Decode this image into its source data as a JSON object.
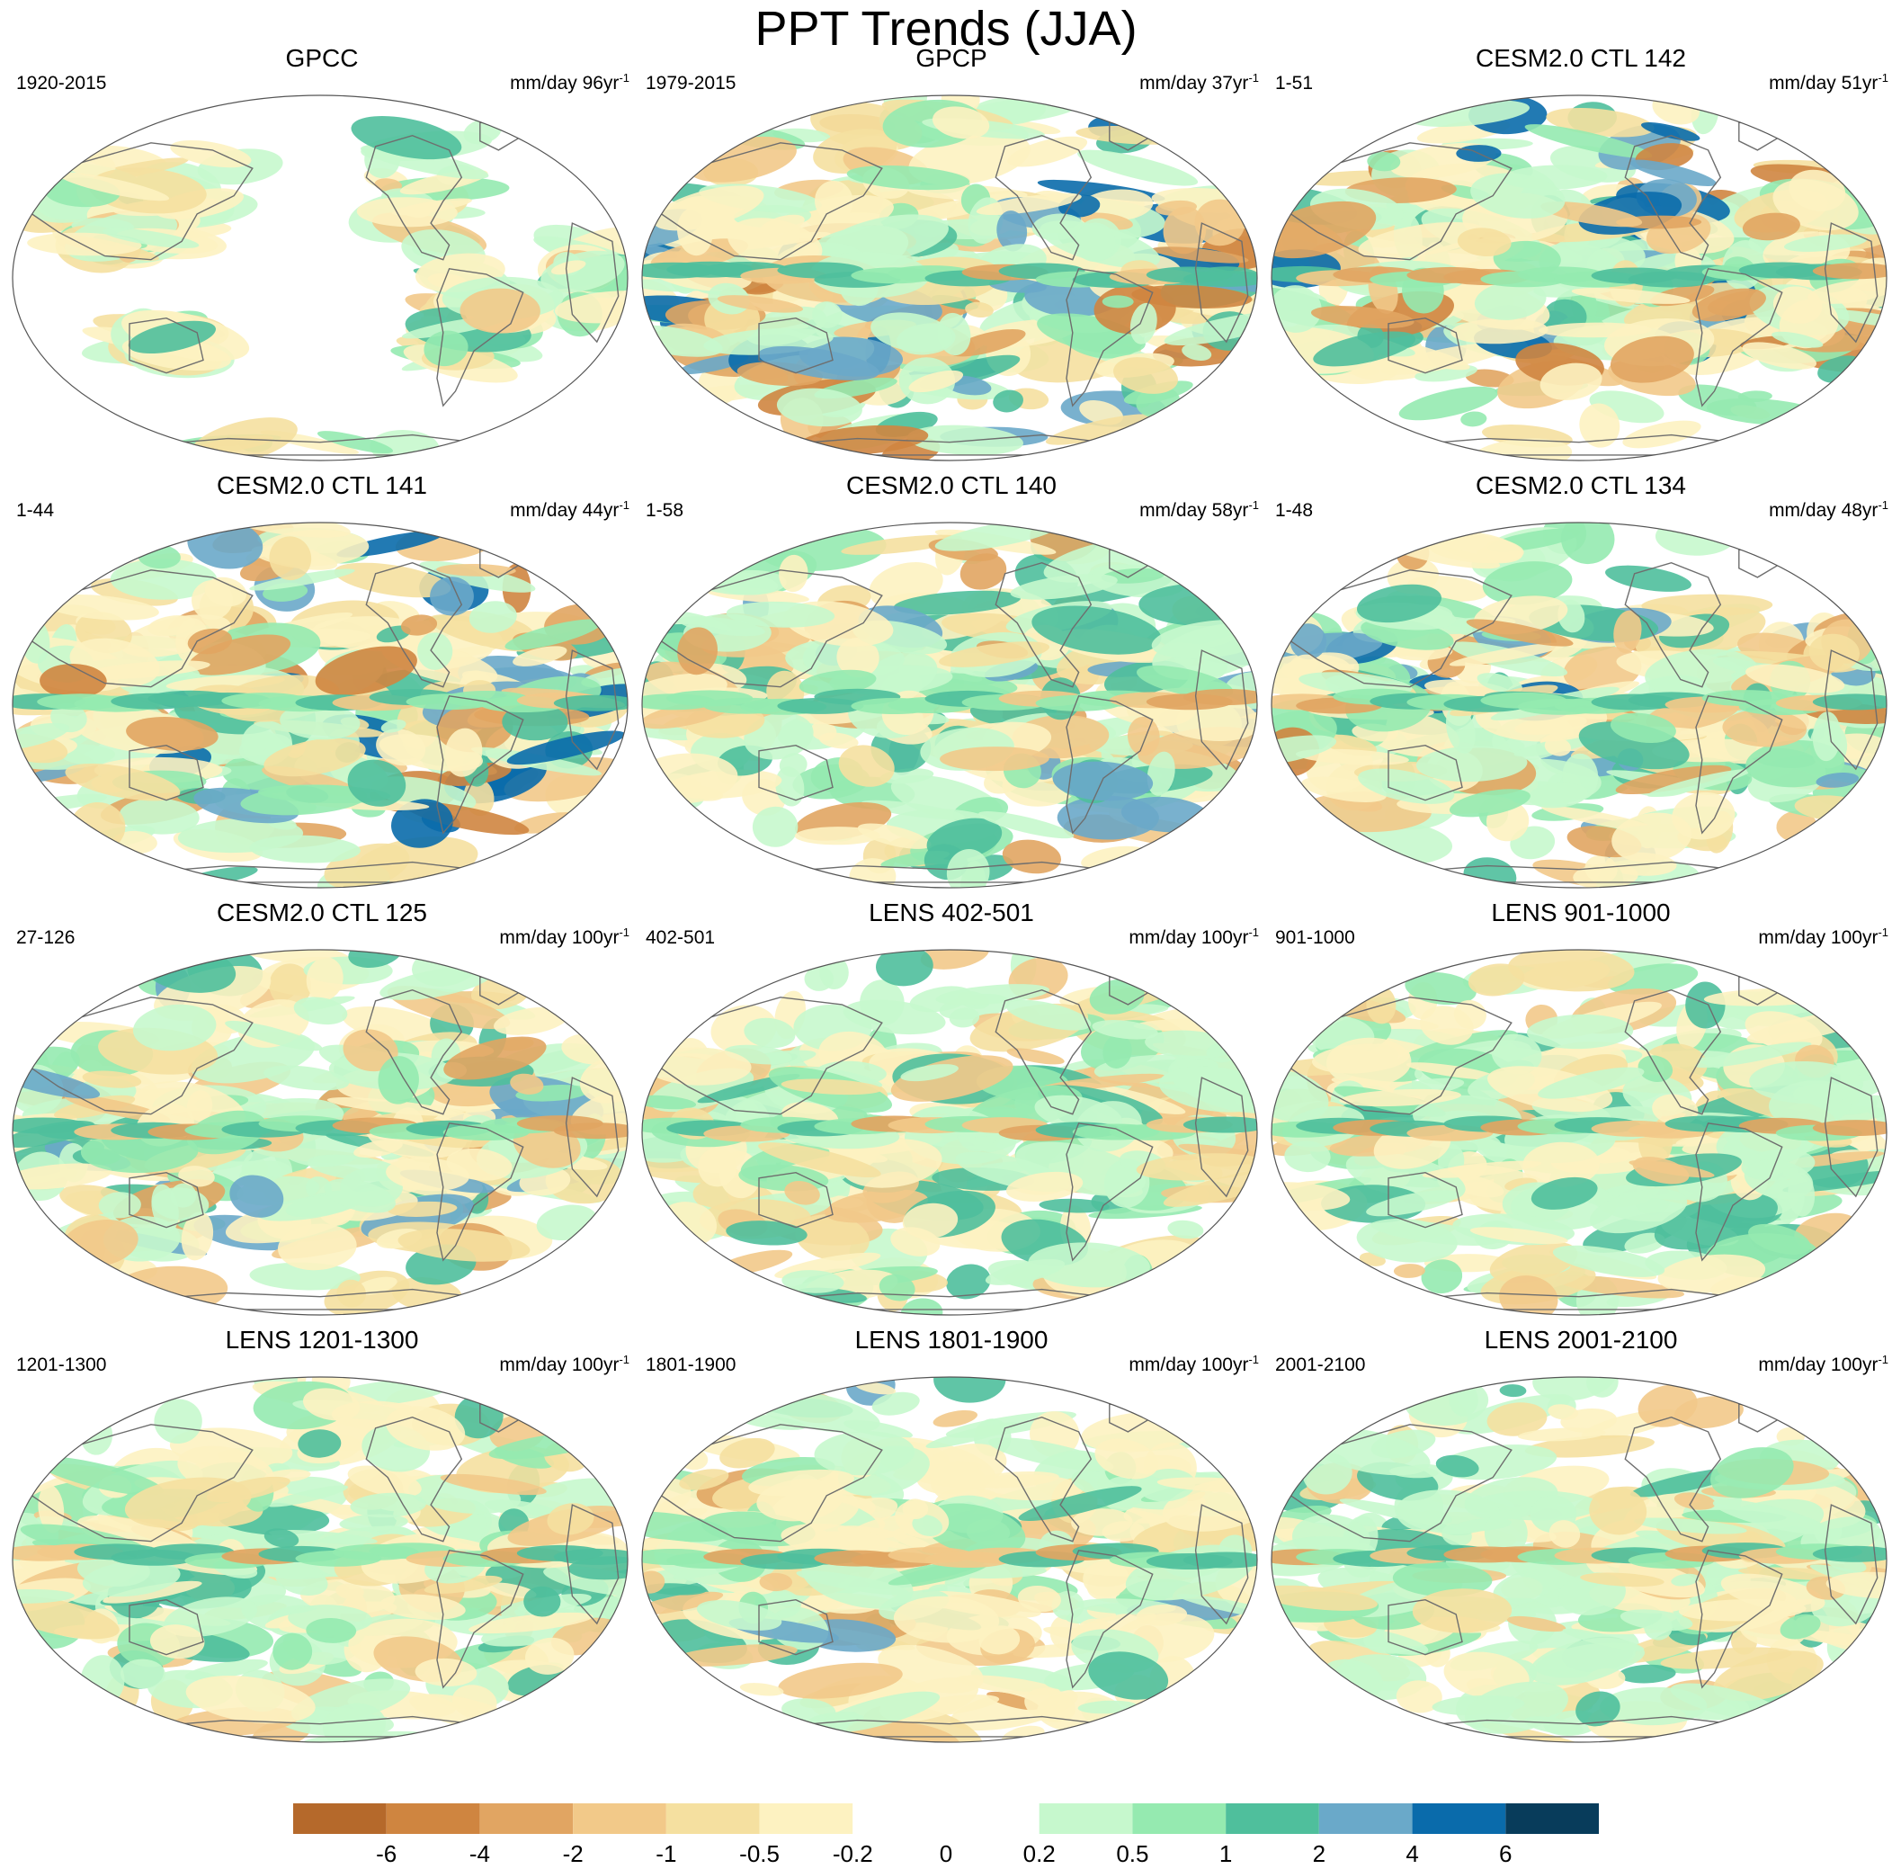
{
  "figure": {
    "title": "PPT Trends (JJA)"
  },
  "panels": [
    {
      "title": "GPCC",
      "period": "1920-2015",
      "units": "mm/day 96yr",
      "units_sup": "-1",
      "pattern": {
        "seed": 3,
        "coverage": "land-only",
        "intensity": 0.5
      }
    },
    {
      "title": "GPCP",
      "period": "1979-2015",
      "units": "mm/day 37yr",
      "units_sup": "-1",
      "pattern": {
        "seed": 7,
        "coverage": "global",
        "intensity": 1.0
      }
    },
    {
      "title": "CESM2.0 CTL 142",
      "period": "1-51",
      "units": "mm/day 51yr",
      "units_sup": "-1",
      "pattern": {
        "seed": 11,
        "coverage": "global",
        "intensity": 0.9
      }
    },
    {
      "title": "CESM2.0 CTL 141",
      "period": "1-44",
      "units": "mm/day 44yr",
      "units_sup": "-1",
      "pattern": {
        "seed": 17,
        "coverage": "global",
        "intensity": 0.95
      }
    },
    {
      "title": "CESM2.0 CTL 140",
      "period": "1-58",
      "units": "mm/day 58yr",
      "units_sup": "-1",
      "pattern": {
        "seed": 23,
        "coverage": "global",
        "intensity": 0.8
      }
    },
    {
      "title": "CESM2.0 CTL 134",
      "period": "1-48",
      "units": "mm/day 48yr",
      "units_sup": "-1",
      "pattern": {
        "seed": 29,
        "coverage": "global",
        "intensity": 0.85
      }
    },
    {
      "title": "CESM2.0 CTL 125",
      "period": "27-126",
      "units": "mm/day 100yr",
      "units_sup": "-1",
      "pattern": {
        "seed": 31,
        "coverage": "global",
        "intensity": 0.75
      }
    },
    {
      "title": "LENS 402-501",
      "period": "402-501",
      "units": "mm/day 100yr",
      "units_sup": "-1",
      "pattern": {
        "seed": 37,
        "coverage": "global",
        "intensity": 0.6
      }
    },
    {
      "title": "LENS 901-1000",
      "period": "901-1000",
      "units": "mm/day 100yr",
      "units_sup": "-1",
      "pattern": {
        "seed": 41,
        "coverage": "global",
        "intensity": 0.6
      }
    },
    {
      "title": "LENS 1201-1300",
      "period": "1201-1300",
      "units": "mm/day 100yr",
      "units_sup": "-1",
      "pattern": {
        "seed": 43,
        "coverage": "global",
        "intensity": 0.6
      }
    },
    {
      "title": "LENS 1801-1900",
      "period": "1801-1900",
      "units": "mm/day 100yr",
      "units_sup": "-1",
      "pattern": {
        "seed": 47,
        "coverage": "global",
        "intensity": 0.65
      }
    },
    {
      "title": "LENS 2001-2100",
      "period": "2001-2100",
      "units": "mm/day 100yr",
      "units_sup": "-1",
      "pattern": {
        "seed": 53,
        "coverage": "global",
        "intensity": 0.6
      }
    }
  ],
  "colorbar": {
    "colors": [
      "#b5692b",
      "#cf8540",
      "#e1a562",
      "#f2c989",
      "#f5e0a0",
      "#fdf2c1",
      "#ffffff",
      "#ffffff",
      "#c6f8cd",
      "#95eab0",
      "#4fbf9c",
      "#6aa9c9",
      "#0a6bab",
      "#083c5b"
    ],
    "labels": [
      "-6",
      "-4",
      "-2",
      "-1",
      "-0.5",
      "-0.2",
      "0",
      "0.2",
      "0.5",
      "1",
      "2",
      "4",
      "6"
    ]
  }
}
